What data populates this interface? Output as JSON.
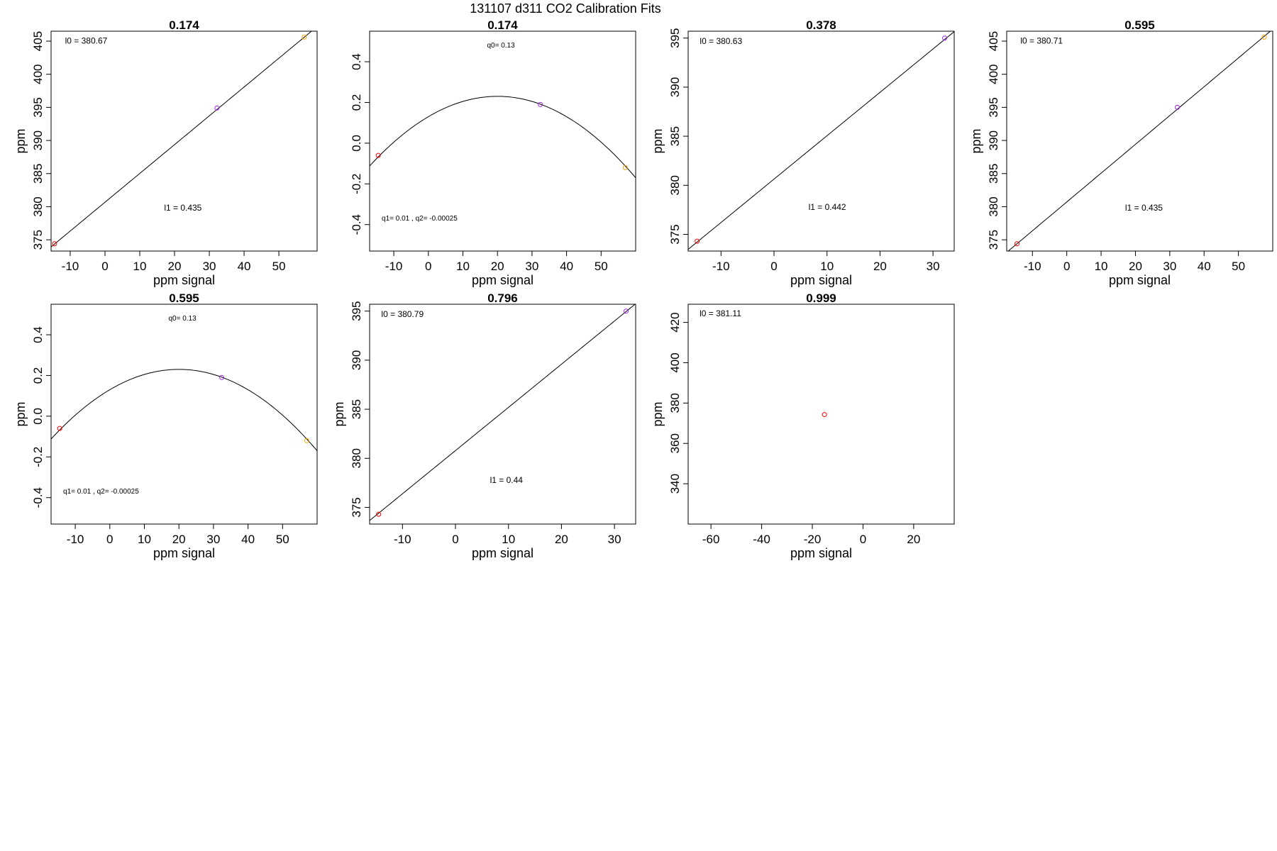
{
  "suptitle": "131107   d311   CO2 Calibration Fits",
  "colors": {
    "red": "#ff0000",
    "purple": "#a020f0",
    "orange": "#ffa500"
  },
  "chart_data": [
    {
      "type": "scatter",
      "title": "0.174",
      "xlabel": "ppm signal",
      "ylabel": "ppm",
      "xlim": [
        -15.5,
        61
      ],
      "ylim": [
        373.3,
        406.5
      ],
      "xticks": [
        -10,
        0,
        10,
        20,
        30,
        40,
        50
      ],
      "yticks": [
        375,
        380,
        385,
        390,
        395,
        400,
        405
      ],
      "fit": {
        "kind": "linear",
        "intercept": 380.67,
        "slope": 0.435
      },
      "annotations": [
        {
          "text": "l0 =  380.67",
          "x": -11.5,
          "y": 404.6,
          "size": "l"
        },
        {
          "text": "l1 =  0.435",
          "x": 17,
          "y": 379.4,
          "size": "l"
        }
      ],
      "points": [
        {
          "x": -14.5,
          "y": 374.4,
          "color": "red"
        },
        {
          "x": 32.2,
          "y": 394.9,
          "color": "purple"
        },
        {
          "x": 57.3,
          "y": 405.6,
          "color": "orange"
        }
      ]
    },
    {
      "type": "scatter",
      "title": "0.174",
      "xlabel": "ppm signal",
      "ylabel": "",
      "xlim": [
        -17,
        60
      ],
      "ylim": [
        -0.53,
        0.55
      ],
      "xticks": [
        -10,
        0,
        10,
        20,
        30,
        40,
        50
      ],
      "yticks": [
        -0.4,
        -0.2,
        0.0,
        0.2,
        0.4
      ],
      "ytick_labels": [
        "-0.4",
        "-0.2",
        "0.0",
        "0.2",
        "0.4"
      ],
      "fit": {
        "kind": "quadratic",
        "q0": 0.13,
        "q1": 0.01,
        "q2": -0.00025
      },
      "annotations": [
        {
          "text": "q0= 0.13",
          "x": 21,
          "y": 0.47,
          "size": "q"
        },
        {
          "text": "q1= 0.01 , q2= -0.00025",
          "x": -13.5,
          "y": -0.38,
          "size": "q"
        }
      ],
      "points": [
        {
          "x": -14.5,
          "y": -0.06,
          "color": "red"
        },
        {
          "x": 32.4,
          "y": 0.19,
          "color": "purple"
        },
        {
          "x": 57,
          "y": -0.12,
          "color": "orange"
        }
      ]
    },
    {
      "type": "scatter",
      "title": "0.378",
      "xlabel": "ppm signal",
      "ylabel": "ppm",
      "xlim": [
        -16.2,
        34
      ],
      "ylim": [
        373.3,
        395.7
      ],
      "xticks": [
        -10,
        0,
        10,
        20,
        30
      ],
      "yticks": [
        375,
        380,
        385,
        390,
        395
      ],
      "fit": {
        "kind": "linear",
        "intercept": 380.63,
        "slope": 0.442
      },
      "annotations": [
        {
          "text": "l0 =  380.63",
          "x": -14,
          "y": 394.4,
          "size": "l"
        },
        {
          "text": "l1 =  0.442",
          "x": 6.5,
          "y": 377.5,
          "size": "l"
        }
      ],
      "points": [
        {
          "x": -14.5,
          "y": 374.3,
          "color": "red"
        },
        {
          "x": 32.2,
          "y": 395,
          "color": "purple"
        }
      ]
    },
    {
      "type": "scatter",
      "title": "0.595",
      "xlabel": "ppm signal",
      "ylabel": "ppm",
      "xlim": [
        -17.5,
        60
      ],
      "ylim": [
        373.3,
        406.5
      ],
      "xticks": [
        -10,
        0,
        10,
        20,
        30,
        40,
        50
      ],
      "yticks": [
        375,
        380,
        385,
        390,
        395,
        400,
        405
      ],
      "fit": {
        "kind": "linear",
        "intercept": 380.71,
        "slope": 0.435
      },
      "annotations": [
        {
          "text": "l0 =  380.71",
          "x": -13.5,
          "y": 404.6,
          "size": "l"
        },
        {
          "text": "l1 =  0.435",
          "x": 17,
          "y": 379.4,
          "size": "l"
        }
      ],
      "points": [
        {
          "x": -14.5,
          "y": 374.4,
          "color": "red"
        },
        {
          "x": 32.2,
          "y": 395,
          "color": "purple"
        },
        {
          "x": 57.5,
          "y": 405.6,
          "color": "orange"
        }
      ]
    },
    {
      "type": "scatter",
      "title": "0.595",
      "xlabel": "ppm signal",
      "ylabel": "ppm",
      "xlim": [
        -17,
        60
      ],
      "ylim": [
        -0.53,
        0.55
      ],
      "xticks": [
        -10,
        0,
        10,
        20,
        30,
        40,
        50
      ],
      "yticks": [
        -0.4,
        -0.2,
        0.0,
        0.2,
        0.4
      ],
      "ytick_labels": [
        "-0.4",
        "-0.2",
        "0.0",
        "0.2",
        "0.4"
      ],
      "fit": {
        "kind": "quadratic",
        "q0": 0.13,
        "q1": 0.01,
        "q2": -0.00025
      },
      "annotations": [
        {
          "text": "q0= 0.13",
          "x": 21,
          "y": 0.47,
          "size": "q"
        },
        {
          "text": "q1= 0.01 , q2= -0.00025",
          "x": -13.5,
          "y": -0.38,
          "size": "q"
        }
      ],
      "points": [
        {
          "x": -14.5,
          "y": -0.06,
          "color": "red"
        },
        {
          "x": 32.4,
          "y": 0.19,
          "color": "purple"
        },
        {
          "x": 57,
          "y": -0.12,
          "color": "orange"
        }
      ]
    },
    {
      "type": "scatter",
      "title": "0.796",
      "xlabel": "ppm signal",
      "ylabel": "ppm",
      "xlim": [
        -16.2,
        34
      ],
      "ylim": [
        373.3,
        395.7
      ],
      "xticks": [
        -10,
        0,
        10,
        20,
        30
      ],
      "yticks": [
        375,
        380,
        385,
        390,
        395
      ],
      "fit": {
        "kind": "linear",
        "intercept": 380.79,
        "slope": 0.44
      },
      "annotations": [
        {
          "text": "l0 =  380.79",
          "x": -14,
          "y": 394.4,
          "size": "l"
        },
        {
          "text": "l1 =  0.44",
          "x": 6.5,
          "y": 377.5,
          "size": "l"
        }
      ],
      "points": [
        {
          "x": -14.5,
          "y": 374.3,
          "color": "red"
        },
        {
          "x": 32.2,
          "y": 395,
          "color": "purple"
        }
      ]
    },
    {
      "type": "scatter",
      "title": "0.999",
      "xlabel": "ppm signal",
      "ylabel": "ppm",
      "xlim": [
        -69,
        36
      ],
      "ylim": [
        320,
        429
      ],
      "xticks": [
        -60,
        -40,
        -20,
        0,
        20
      ],
      "yticks": [
        340,
        360,
        380,
        400,
        420
      ],
      "fit": null,
      "annotations": [
        {
          "text": "l0 =  381.11",
          "x": -64.5,
          "y": 423,
          "size": "l"
        }
      ],
      "points": [
        {
          "x": -15.2,
          "y": 374.3,
          "color": "red"
        }
      ]
    }
  ]
}
